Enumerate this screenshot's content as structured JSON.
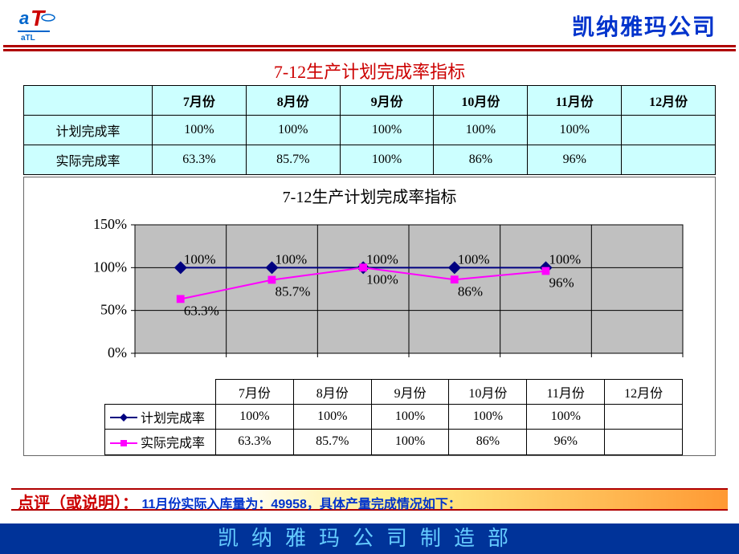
{
  "header": {
    "logo_text_top": "a",
    "logo_text_main": "T",
    "logo_text_bottom": "aTL",
    "logo_colors": {
      "a": "#0066cc",
      "T": "#cc0000",
      "bottom": "#0066cc"
    },
    "company": "凯纳雅玛公司",
    "company_color": "#0033cc",
    "rule_color": "#b00000"
  },
  "title": {
    "text": "7-12生产计划完成率指标",
    "color": "#cc0000",
    "fontsize": 22
  },
  "summary_table": {
    "background": "#ccffff",
    "border_color": "#000000",
    "col_headers": [
      "",
      "7月份",
      "8月份",
      "9月份",
      "10月份",
      "11月份",
      "12月份"
    ],
    "rows": [
      {
        "label": "计划完成率",
        "cells": [
          "100%",
          "100%",
          "100%",
          "100%",
          "100%",
          ""
        ]
      },
      {
        "label": "实际完成率",
        "cells": [
          "63.3%",
          "85.7%",
          "100%",
          "86%",
          "96%",
          ""
        ]
      }
    ]
  },
  "chart": {
    "title": "7-12生产计划完成率指标",
    "title_fontsize": 20,
    "type": "line",
    "background": "#c0c0c0",
    "border_color": "#666666",
    "categories": [
      "7月份",
      "8月份",
      "9月份",
      "10月份",
      "11月份",
      "12月份"
    ],
    "y_ticks": [
      0,
      50,
      100,
      150
    ],
    "y_tick_labels": [
      "0%",
      "50%",
      "100%",
      "150%"
    ],
    "ylim": [
      0,
      150
    ],
    "grid_color": "#000000",
    "series": [
      {
        "name": "计划完成率",
        "color": "#000080",
        "marker": "diamond",
        "marker_size": 8,
        "line_width": 2,
        "values": [
          100,
          100,
          100,
          100,
          100,
          null
        ],
        "labels": [
          "100%",
          "100%",
          "100%",
          "100%",
          "100%",
          ""
        ]
      },
      {
        "name": "实际完成率",
        "color": "#ff00ff",
        "marker": "square",
        "marker_size": 7,
        "line_width": 2,
        "values": [
          63.3,
          85.7,
          100,
          86,
          96,
          null
        ],
        "labels": [
          "63.3%",
          "85.7%",
          "100%",
          "86%",
          "96%",
          ""
        ]
      }
    ],
    "legend_table": {
      "col_headers": [
        "7月份",
        "8月份",
        "9月份",
        "10月份",
        "11月份",
        "12月份"
      ],
      "rows": [
        {
          "marker": "diamond",
          "color": "#000080",
          "name": "计划完成率",
          "cells": [
            "100%",
            "100%",
            "100%",
            "100%",
            "100%",
            ""
          ]
        },
        {
          "marker": "square",
          "color": "#ff00ff",
          "name": "实际完成率",
          "cells": [
            "63.3%",
            "85.7%",
            "100%",
            "86%",
            "96%",
            ""
          ]
        }
      ]
    }
  },
  "comment": {
    "label": "点评（或说明）：",
    "text": "11月份实际入库量为：49958，具体产量完成情况如下：",
    "label_color": "#cc0000",
    "text_color": "#0033cc",
    "gradient": [
      "#ffffff",
      "#ffee88",
      "#ff9933"
    ]
  },
  "footer": {
    "text": "凯纳雅玛公司制造部",
    "background": "#003399",
    "text_color": "#66ccff",
    "fontsize": 26
  }
}
